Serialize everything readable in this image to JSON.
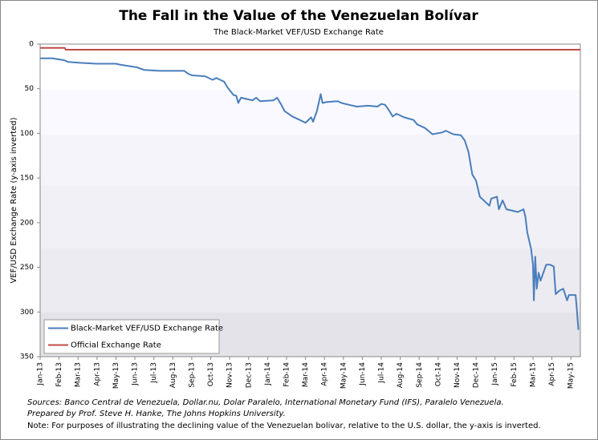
{
  "chart_data": {
    "type": "line",
    "title": "The Fall in the Value of the Venezuelan Bolívar",
    "subtitle": "The Black-Market VEF/USD Exchange Rate",
    "y_label": "VEF/USD Exchange Rate (y-axis inverted)",
    "y_inverted": true,
    "legend": "lower left",
    "xlim": [
      0,
      28.5
    ],
    "xticks": [
      {
        "value": 0,
        "label": "Jan-13"
      },
      {
        "value": 1,
        "label": "Feb-13"
      },
      {
        "value": 2,
        "label": "Mar-13"
      },
      {
        "value": 3,
        "label": "Apr-13"
      },
      {
        "value": 4,
        "label": "May-13"
      },
      {
        "value": 5,
        "label": "Jun-13"
      },
      {
        "value": 6,
        "label": "Jul-13"
      },
      {
        "value": 7,
        "label": "Aug-13"
      },
      {
        "value": 8,
        "label": "Sep-13"
      },
      {
        "value": 9,
        "label": "Oct-13"
      },
      {
        "value": 10,
        "label": "Nov-13"
      },
      {
        "value": 11,
        "label": "Dec-13"
      },
      {
        "value": 12,
        "label": "Jan-14"
      },
      {
        "value": 13,
        "label": "Feb-14"
      },
      {
        "value": 14,
        "label": "Mar-14"
      },
      {
        "value": 15,
        "label": "Apr-14"
      },
      {
        "value": 16,
        "label": "May-14"
      },
      {
        "value": 17,
        "label": "Jun-14"
      },
      {
        "value": 18,
        "label": "Jul-14"
      },
      {
        "value": 19,
        "label": "Aug-14"
      },
      {
        "value": 20,
        "label": "Sep-14"
      },
      {
        "value": 21,
        "label": "Oct-14"
      },
      {
        "value": 22,
        "label": "Nov-14"
      },
      {
        "value": 23,
        "label": "Dec-14"
      },
      {
        "value": 24,
        "label": "Jan-15"
      },
      {
        "value": 25,
        "label": "Feb-15"
      },
      {
        "value": 26,
        "label": "Mar-15"
      },
      {
        "value": 27,
        "label": "Apr-15"
      },
      {
        "value": 28,
        "label": "May-15"
      }
    ],
    "ylim": [
      0,
      350
    ],
    "yticks": [
      0,
      50,
      100,
      150,
      200,
      250,
      300,
      350
    ],
    "series": [
      {
        "name": "Black-Market VEF/USD Exchange Rate",
        "color": "#4a7ebb",
        "x": [
          0,
          0.63,
          1.27,
          1.48,
          2.1,
          2.96,
          4.0,
          4.2,
          5.1,
          5.5,
          6.3,
          7.6,
          7.8,
          8.0,
          8.7,
          9.1,
          9.3,
          9.5,
          9.7,
          9.9,
          10.2,
          10.35,
          10.45,
          10.6,
          11.0,
          11.2,
          11.4,
          11.6,
          12.3,
          12.5,
          12.7,
          12.9,
          13.3,
          13.7,
          14.0,
          14.3,
          14.4,
          14.6,
          14.7,
          14.8,
          14.9,
          15.1,
          15.7,
          15.9,
          16.3,
          16.7,
          17.3,
          17.8,
          18.0,
          18.2,
          18.4,
          18.6,
          18.8,
          19.2,
          19.7,
          19.9,
          20.3,
          20.7,
          21.2,
          21.4,
          21.8,
          22.2,
          22.4,
          22.6,
          22.8,
          23.0,
          23.2,
          23.5,
          23.7,
          23.8,
          24.1,
          24.2,
          24.4,
          24.6,
          25.2,
          25.5,
          25.6,
          25.7,
          25.9,
          26.0,
          26.05,
          26.12,
          26.2,
          26.3,
          26.4,
          26.7,
          26.9,
          27.1,
          27.2,
          27.4,
          27.6,
          27.8,
          27.9,
          28.25,
          28.33,
          28.4
        ],
        "values": [
          16,
          16,
          18,
          20,
          21,
          22,
          22,
          23,
          26,
          29,
          30,
          30,
          33,
          35,
          36,
          40,
          38,
          40,
          42,
          49,
          57,
          58,
          66,
          60,
          62,
          63,
          60,
          64,
          63,
          60,
          67,
          75,
          81,
          85,
          88,
          82,
          87,
          75,
          66,
          56,
          66,
          65,
          64,
          66,
          68,
          70,
          69,
          70,
          67,
          68,
          74,
          81,
          78,
          82,
          85,
          90,
          94,
          101,
          99,
          97,
          101,
          102,
          108,
          121,
          146,
          153,
          171,
          177,
          181,
          173,
          171,
          185,
          175,
          185,
          188,
          185,
          193,
          211,
          229,
          247,
          287,
          238,
          274,
          256,
          265,
          247,
          247,
          249,
          280,
          276,
          274,
          287,
          281,
          281,
          301,
          320
        ]
      },
      {
        "name": "Official Exchange Rate",
        "color": "#be4b48",
        "x": [
          0,
          1.3,
          1.35,
          28.5
        ],
        "values": [
          4.3,
          4.3,
          6.3,
          6.3
        ]
      }
    ],
    "notes": [
      "Sources: Banco Central de Venezuela, Dollar.nu, Dolar Paralelo, International Monetary Fund (IFS), Paralelo Venezuela.",
      "Prepared by Prof. Steve H. Hanke, The Johns Hopkins University.",
      "Note: For purposes of illustrating the declining value of the Venezuelan bolivar, relative to the U.S. dollar, the y-axis is inverted."
    ]
  }
}
